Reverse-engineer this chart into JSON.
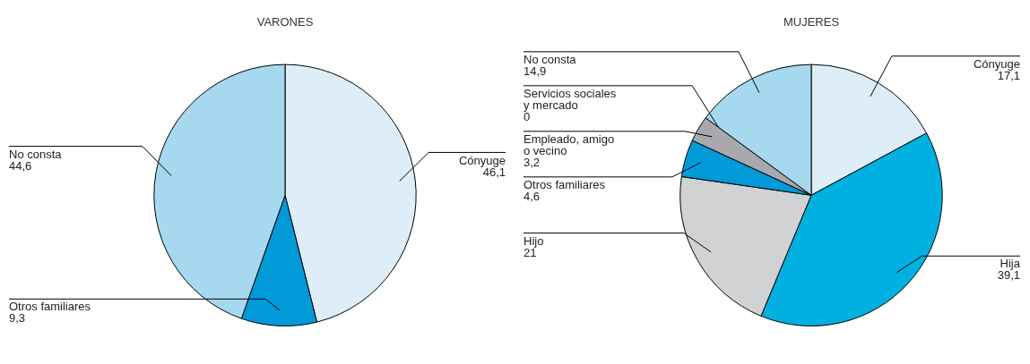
{
  "chart_data": [
    {
      "type": "pie",
      "title": "VARONES",
      "categories": [
        "Cónyuge",
        "Otros familiares",
        "No consta"
      ],
      "values": [
        46.1,
        9.3,
        44.6
      ],
      "value_labels": [
        "46,1",
        "9,3",
        "44,6"
      ],
      "colors": [
        "#ddeef8",
        "#009ad8",
        "#a6d8ef"
      ]
    },
    {
      "type": "pie",
      "title": "MUJERES",
      "categories": [
        "Cónyuge",
        "Hija",
        "Hijo",
        "Otros familiares",
        "Empleado, amigo o vecino",
        "Servicios sociales y mercado",
        "No consta"
      ],
      "values": [
        17.1,
        39.1,
        21,
        4.6,
        3.2,
        0,
        14.9
      ],
      "value_labels": [
        "17,1",
        "39,1",
        "21",
        "4,6",
        "3,2",
        "0",
        "14,9"
      ],
      "colors": [
        "#ddeef8",
        "#00b0e0",
        "#d0d2d4",
        "#009ad8",
        "#a7a9ac",
        "#8a8c8e",
        "#a6d8ef"
      ]
    }
  ]
}
